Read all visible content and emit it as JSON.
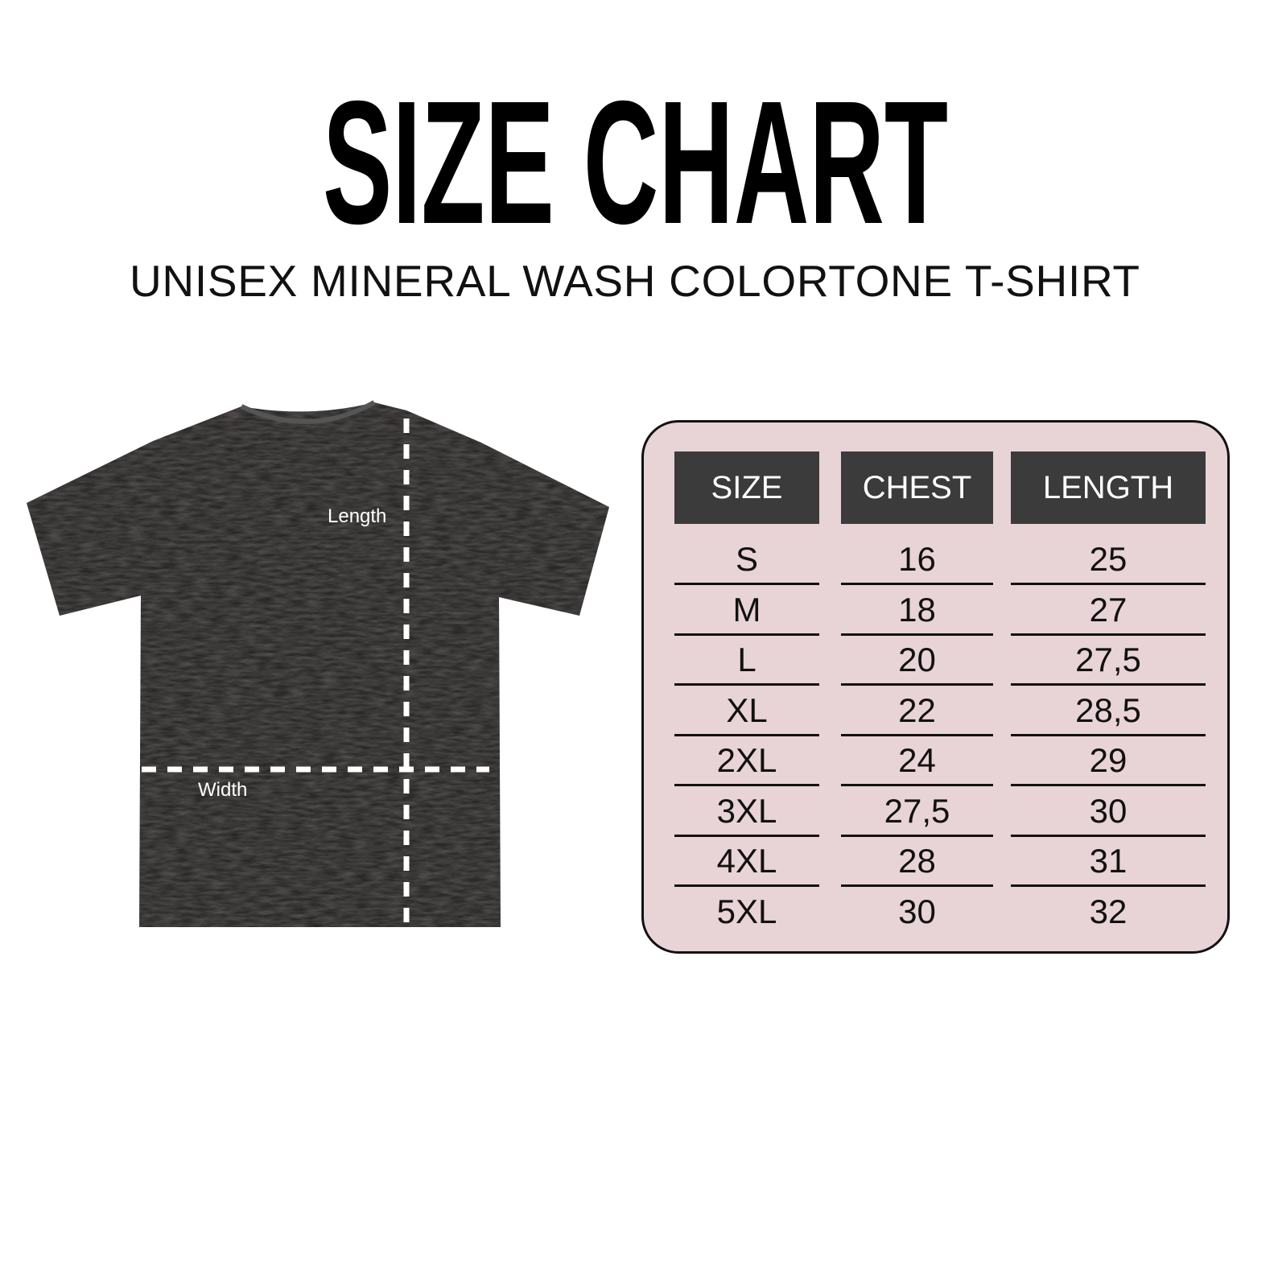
{
  "title": "SIZE CHART",
  "subtitle": "UNISEX MINERAL WASH COLORTONE T-SHIRT",
  "shirt": {
    "length_label": "Length",
    "width_label": "Width",
    "shirt_color": "#2a2727"
  },
  "table": {
    "background": "#e8d3d6",
    "header_color": "#3b3b3b",
    "headers": [
      "SIZE",
      "CHEST",
      "LENGTH"
    ],
    "rows": [
      [
        "S",
        "16",
        "25"
      ],
      [
        "M",
        "18",
        "27"
      ],
      [
        "L",
        "20",
        "27,5"
      ],
      [
        "XL",
        "22",
        "28,5"
      ],
      [
        "2XL",
        "24",
        "29"
      ],
      [
        "3XL",
        "27,5",
        "30"
      ],
      [
        "4XL",
        "28",
        "31"
      ],
      [
        "5XL",
        "30",
        "32"
      ]
    ]
  }
}
